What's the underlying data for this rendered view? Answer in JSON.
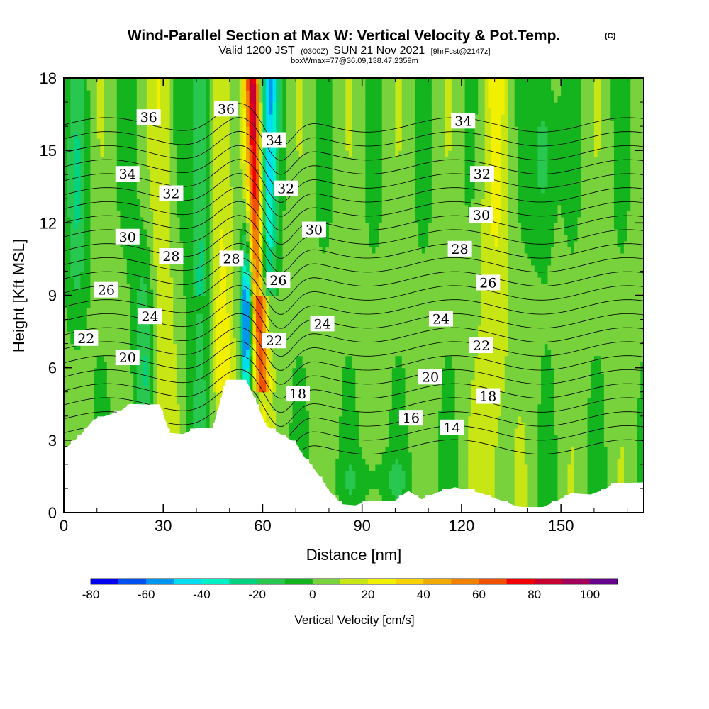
{
  "titles": {
    "main": "Wind-Parallel Section at Max W: Vertical Velocity & Pot.Temp.",
    "copyright": "(C)",
    "valid_prefix": "Valid 1200 JST",
    "valid_utc": "(0300Z)",
    "valid_date": "SUN 21 Nov 2021",
    "forecast": "[9hrFcst@2147z]",
    "box": "boxWmax=77@36.09,138.47,2359m"
  },
  "chart_data": {
    "type": "heatmap",
    "xlabel": "Distance [nm]",
    "ylabel": "Height [Kft MSL]",
    "xlim": [
      0,
      175
    ],
    "ylim": [
      0,
      18
    ],
    "xticks": [
      0,
      30,
      60,
      90,
      120,
      150
    ],
    "yticks": [
      0,
      3,
      6,
      9,
      12,
      15,
      18
    ],
    "colorbar": {
      "title": "Vertical Velocity [cm/s]",
      "ticks": [
        "-80",
        "-60",
        "-40",
        "-20",
        "0",
        "20",
        "40",
        "60",
        "80",
        "100"
      ],
      "levels": [
        -80,
        -70,
        -60,
        -50,
        -40,
        -30,
        -20,
        -10,
        0,
        10,
        20,
        30,
        40,
        50,
        60,
        70,
        80,
        90,
        100
      ],
      "colors": [
        "#0000f0",
        "#0050f0",
        "#0096f0",
        "#00dcf0",
        "#00f0c8",
        "#00d282",
        "#28c850",
        "#14b41e",
        "#78d23c",
        "#c8e614",
        "#f0f000",
        "#fad200",
        "#f0aa00",
        "#f08200",
        "#f05000",
        "#f00000",
        "#c80032",
        "#a0005a",
        "#64008c"
      ]
    },
    "terrain": [
      [
        0,
        2.6
      ],
      [
        5,
        3.2
      ],
      [
        9,
        3.85
      ],
      [
        17,
        4.2
      ],
      [
        20,
        4.5
      ],
      [
        29,
        4.45
      ],
      [
        32,
        3.3
      ],
      [
        36,
        3.25
      ],
      [
        40,
        3.5
      ],
      [
        45,
        3.5
      ],
      [
        49,
        5.5
      ],
      [
        55,
        5.5
      ],
      [
        58,
        4.6
      ],
      [
        61,
        3.6
      ],
      [
        66,
        3.2
      ],
      [
        70,
        2.9
      ],
      [
        72,
        2.4
      ],
      [
        75,
        1.9
      ],
      [
        78,
        1.35
      ],
      [
        80,
        0.9
      ],
      [
        84,
        0.35
      ],
      [
        88,
        0.3
      ],
      [
        92,
        0.5
      ],
      [
        100,
        0.5
      ],
      [
        104,
        0.9
      ],
      [
        108,
        0.55
      ],
      [
        113,
        0.85
      ],
      [
        118,
        1.05
      ],
      [
        126,
        0.8
      ],
      [
        131,
        0.55
      ],
      [
        137,
        0.25
      ],
      [
        144,
        0.2
      ],
      [
        149,
        0.5
      ],
      [
        153,
        0.8
      ],
      [
        159,
        0.75
      ],
      [
        163,
        0.95
      ],
      [
        166,
        1.2
      ],
      [
        175,
        1.25
      ]
    ],
    "updraft_band": {
      "x_at_top": 57,
      "x_at_surface": 61,
      "peak": 77
    },
    "downdraft_band": {
      "x_at_top": 62,
      "x_at_surface": 59,
      "peak": -50
    },
    "lee_downdraft_core": {
      "x": 55,
      "y": 8,
      "peak": -70
    },
    "isentropes": [
      14,
      16,
      18,
      20,
      22,
      24,
      26,
      28,
      30,
      32,
      34,
      36
    ],
    "contour_labels": [
      {
        "text": "36",
        "x": 25.6,
        "y": 16.35
      },
      {
        "text": "36",
        "x": 49,
        "y": 16.7
      },
      {
        "text": "34",
        "x": 63.5,
        "y": 15.4
      },
      {
        "text": "34",
        "x": 120.5,
        "y": 16.2
      },
      {
        "text": "34",
        "x": 19.2,
        "y": 14.0
      },
      {
        "text": "32",
        "x": 67,
        "y": 13.4
      },
      {
        "text": "32",
        "x": 126.2,
        "y": 14.0
      },
      {
        "text": "32",
        "x": 32.4,
        "y": 13.2
      },
      {
        "text": "30",
        "x": 75.5,
        "y": 11.7
      },
      {
        "text": "30",
        "x": 126,
        "y": 12.3
      },
      {
        "text": "30",
        "x": 19.2,
        "y": 11.4
      },
      {
        "text": "28",
        "x": 50.6,
        "y": 10.5
      },
      {
        "text": "28",
        "x": 32.4,
        "y": 10.6
      },
      {
        "text": "28",
        "x": 119.5,
        "y": 10.9
      },
      {
        "text": "26",
        "x": 64.7,
        "y": 9.6
      },
      {
        "text": "26",
        "x": 128,
        "y": 9.5
      },
      {
        "text": "26",
        "x": 12.8,
        "y": 9.2
      },
      {
        "text": "24",
        "x": 26,
        "y": 8.1
      },
      {
        "text": "24",
        "x": 78,
        "y": 7.8
      },
      {
        "text": "24",
        "x": 113.8,
        "y": 8.0
      },
      {
        "text": "22",
        "x": 63.5,
        "y": 7.1
      },
      {
        "text": "22",
        "x": 126,
        "y": 6.9
      },
      {
        "text": "22",
        "x": 6.7,
        "y": 7.2
      },
      {
        "text": "20",
        "x": 19.2,
        "y": 6.4
      },
      {
        "text": "20",
        "x": 110.6,
        "y": 5.6
      },
      {
        "text": "18",
        "x": 70.6,
        "y": 4.9
      },
      {
        "text": "18",
        "x": 128,
        "y": 4.8
      },
      {
        "text": "16",
        "x": 104.8,
        "y": 3.9
      },
      {
        "text": "14",
        "x": 117.1,
        "y": 3.5
      }
    ]
  }
}
